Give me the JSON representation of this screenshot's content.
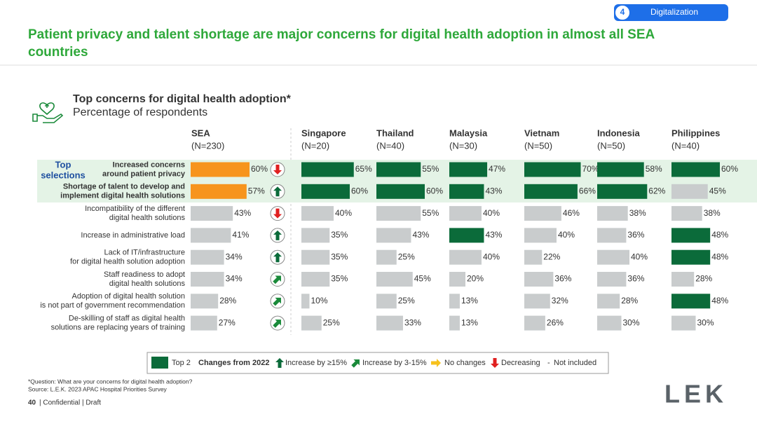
{
  "header": {
    "badge_number": "4",
    "badge_label": "Digitalization",
    "title_lines": [
      "Patient privacy and talent shortage are major concerns for digital health adoption in almost all SEA",
      "countries"
    ],
    "section_title": "Top concerns for digital health adoption*",
    "section_subtitle": "Percentage of respondents"
  },
  "chart_data": {
    "type": "bar",
    "top_selections_label": [
      "Top",
      "selections"
    ],
    "categories": [
      [
        "Increased concerns",
        "around patient privacy"
      ],
      [
        "Shortage of talent to develop and",
        "implement digital health solutions"
      ],
      [
        "Incompatibility of the different",
        "digital health solutions"
      ],
      [
        "Increase in administrative load"
      ],
      [
        "Lack of IT/infrastructure",
        "for digital health solution adoption"
      ],
      [
        "Staff readiness to adopt",
        "digital health solutions"
      ],
      [
        "Adoption of digital health solution",
        "is not part of government recommendation"
      ],
      [
        "De-skilling of staff as digital health",
        "solutions are replacing years of training"
      ]
    ],
    "columns": [
      {
        "name": "SEA",
        "n": "(N=230)",
        "values": [
          60,
          57,
          43,
          41,
          34,
          34,
          28,
          27
        ],
        "value_labels": [
          "60%",
          "57%",
          "43%",
          "41%",
          "34%",
          "34%",
          "28%",
          "27%"
        ],
        "colors": [
          "#f7941d",
          "#f7941d",
          "#c9cccd",
          "#c9cccd",
          "#c9cccd",
          "#c9cccd",
          "#c9cccd",
          "#c9cccd"
        ],
        "changes": [
          3,
          0,
          3,
          0,
          0,
          1,
          1,
          1
        ]
      },
      {
        "name": "Singapore",
        "n": "(N=20)",
        "values": [
          65,
          60,
          40,
          35,
          35,
          35,
          10,
          25
        ],
        "value_labels": [
          "65%",
          "60%",
          "40%",
          "35%",
          "35%",
          "35%",
          "10%",
          "25%"
        ],
        "colors": [
          "#0b6b3a",
          "#0b6b3a",
          "#c9cccd",
          "#c9cccd",
          "#c9cccd",
          "#c9cccd",
          "#c9cccd",
          "#c9cccd"
        ]
      },
      {
        "name": "Thailand",
        "n": "(N=40)",
        "values": [
          55,
          60,
          55,
          43,
          25,
          45,
          25,
          33
        ],
        "value_labels": [
          "55%",
          "60%",
          "55%",
          "43%",
          "25%",
          "45%",
          "25%",
          "33%"
        ],
        "colors": [
          "#0b6b3a",
          "#0b6b3a",
          "#c9cccd",
          "#c9cccd",
          "#c9cccd",
          "#c9cccd",
          "#c9cccd",
          "#c9cccd"
        ]
      },
      {
        "name": "Malaysia",
        "n": "(N=30)",
        "values": [
          47,
          43,
          40,
          43,
          40,
          20,
          13,
          13
        ],
        "value_labels": [
          "47%",
          "43%",
          "40%",
          "43%",
          "40%",
          "20%",
          "13%",
          "13%"
        ],
        "colors": [
          "#0b6b3a",
          "#0b6b3a",
          "#c9cccd",
          "#0b6b3a",
          "#c9cccd",
          "#c9cccd",
          "#c9cccd",
          "#c9cccd"
        ]
      },
      {
        "name": "Vietnam",
        "n": "(N=50)",
        "values": [
          70,
          66,
          46,
          40,
          22,
          36,
          32,
          26
        ],
        "value_labels": [
          "70%",
          "66%",
          "46%",
          "40%",
          "22%",
          "36%",
          "32%",
          "26%"
        ],
        "colors": [
          "#0b6b3a",
          "#0b6b3a",
          "#c9cccd",
          "#c9cccd",
          "#c9cccd",
          "#c9cccd",
          "#c9cccd",
          "#c9cccd"
        ]
      },
      {
        "name": "Indonesia",
        "n": "(N=50)",
        "values": [
          58,
          62,
          38,
          36,
          40,
          36,
          28,
          30
        ],
        "value_labels": [
          "58%",
          "62%",
          "38%",
          "36%",
          "40%",
          "36%",
          "28%",
          "30%"
        ],
        "colors": [
          "#0b6b3a",
          "#0b6b3a",
          "#c9cccd",
          "#c9cccd",
          "#c9cccd",
          "#c9cccd",
          "#c9cccd",
          "#c9cccd"
        ]
      },
      {
        "name": "Philippines",
        "n": "(N=40)",
        "values": [
          60,
          45,
          38,
          48,
          48,
          28,
          48,
          30
        ],
        "value_labels": [
          "60%",
          "45%",
          "38%",
          "48%",
          "48%",
          "28%",
          "48%",
          "30%"
        ],
        "colors": [
          "#0b6b3a",
          "#c9cccd",
          "#c9cccd",
          "#0b6b3a",
          "#0b6b3a",
          "#c9cccd",
          "#0b6b3a",
          "#c9cccd"
        ]
      }
    ],
    "legend": {
      "top2_label": "Top 2",
      "top2_color": "#0b6b3a",
      "heading": "Changes from 2022",
      "items": [
        {
          "label": "Increase by ≥15%",
          "color": "#0b6b3a"
        },
        {
          "label": "Increase by 3-15%",
          "color": "#1a8a3a"
        },
        {
          "label": "No changes",
          "color": "#f7c21d"
        },
        {
          "label": "Decreasing",
          "color": "#e02020"
        }
      ],
      "not_included_symbol": "-",
      "not_included_label": "Not included"
    }
  },
  "footer": {
    "note": "*Question: What are your concerns for digital health adoption?",
    "source": "Source: L.E.K. 2023 APAC Hospital Priorities Survey",
    "page": "40",
    "confidential": "| Confidential | Draft",
    "logo": "LEK"
  }
}
